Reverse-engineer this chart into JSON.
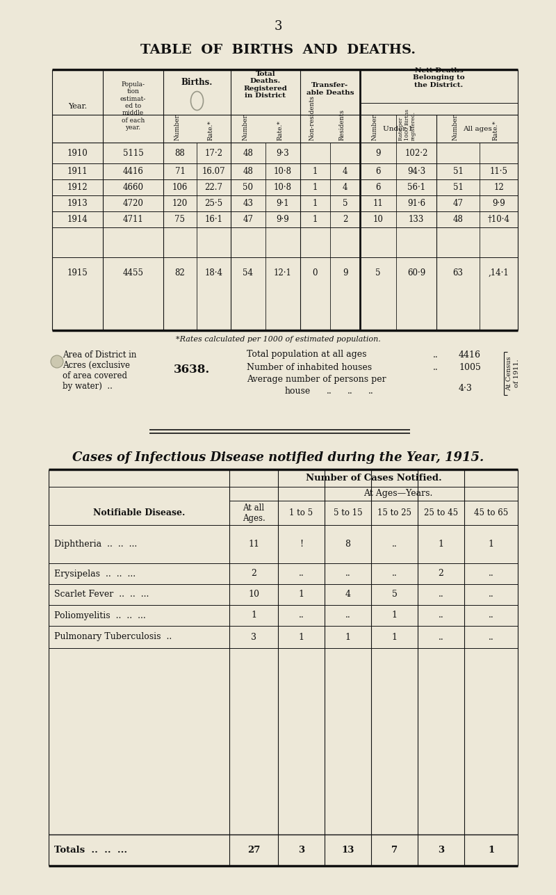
{
  "bg_color": "#ede8d8",
  "page_number": "3",
  "main_title": "TABLE OF BIRTHS AND DEATHS.",
  "births_data": [
    [
      "1910",
      "5115",
      "88",
      "17·2",
      "48",
      "9·3",
      "",
      "",
      "9",
      "102·2",
      "",
      ""
    ],
    [
      "1911",
      "4416",
      "71",
      "16.07",
      "48",
      "10·8",
      "1",
      "4",
      "6",
      "94·3",
      "51",
      "11·5"
    ],
    [
      "1912",
      "4660",
      "106",
      "22.7",
      "50",
      "10·8",
      "1",
      "4",
      "6",
      "56·1",
      "51",
      "12"
    ],
    [
      "1913",
      "4720",
      "120",
      "25·5",
      "43",
      "9·1",
      "1",
      "5",
      "11",
      "91·6",
      "47",
      "9·9"
    ],
    [
      "1914",
      "4711",
      "75",
      "16·1",
      "47",
      "9·9",
      "1",
      "2",
      "10",
      "133",
      "48",
      "10·4"
    ],
    [
      "1915",
      "4455",
      "82",
      "18·4",
      "54",
      "12·1",
      "0",
      "9",
      "5",
      "60·9",
      "63",
      "14·1"
    ]
  ],
  "footnote": "*Rates calculated per 1000 of estimated population.",
  "infectious_title": "Cases of Infectious Disease notified during the Year, 1915.",
  "infectious_subheader1": "Number of Cases Notified.",
  "infectious_subheader2": "At Ages—Years.",
  "infectious_data": [
    [
      "Diphtheria",
      "11",
      "!",
      "8",
      "..",
      "1",
      "1"
    ],
    [
      "Erysipelas",
      "2",
      "..",
      "..",
      "..",
      "2",
      ".."
    ],
    [
      "Scarlet Fever",
      "10",
      "1",
      "4",
      "5",
      "..",
      ".."
    ],
    [
      "Poliomyelitis",
      "1",
      "..",
      "..",
      "1",
      "..",
      ".."
    ],
    [
      "Pulmonary Tuberculosis",
      "3",
      "1",
      "1",
      "1",
      "..",
      ".."
    ]
  ],
  "infectious_totals": [
    "Totals",
    "27",
    "3",
    "13",
    "7",
    "3",
    "1"
  ],
  "text_color": "#111111",
  "line_color": "#111111"
}
